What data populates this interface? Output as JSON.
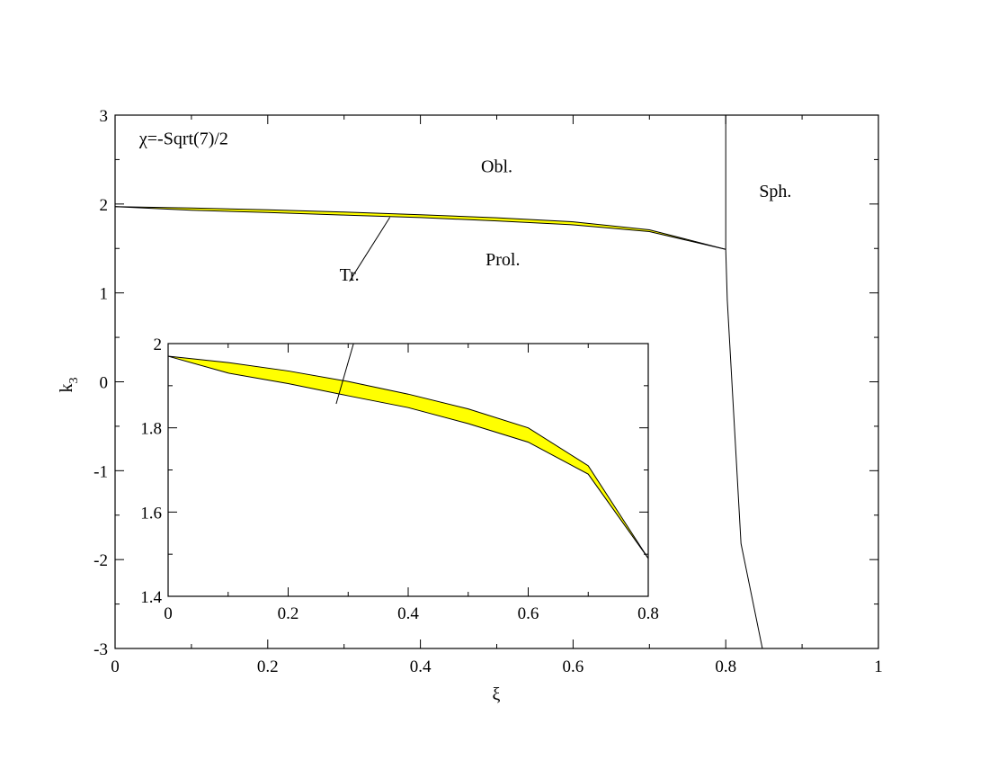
{
  "chart_data": [
    {
      "type": "area",
      "xlabel": "ξ",
      "ylabel": "k",
      "ylabel_sub": "3",
      "xlim": [
        0,
        1
      ],
      "ylim": [
        -3,
        3
      ],
      "xticks": [
        "0",
        "0.2",
        "0.4",
        "0.6",
        "0.8",
        "1"
      ],
      "yticks": [
        "-3",
        "-2",
        "-1",
        "0",
        "1",
        "2",
        "3"
      ],
      "annotations": [
        {
          "text": "χ=-Sqrt(7)/2",
          "x": 0.09,
          "y": 2.67
        },
        {
          "text": "Obl.",
          "x": 0.5,
          "y": 2.36
        },
        {
          "text": "Sph.",
          "x": 0.865,
          "y": 2.08
        },
        {
          "text": "Prol.",
          "x": 0.508,
          "y": 1.31
        },
        {
          "text": "Tr.",
          "x": 0.307,
          "y": 1.14
        }
      ],
      "band": {
        "x": [
          0,
          0.1,
          0.2,
          0.3,
          0.4,
          0.5,
          0.6,
          0.7,
          0.8
        ],
        "upper": [
          1.97,
          1.955,
          1.935,
          1.91,
          1.88,
          1.845,
          1.8,
          1.71,
          1.49
        ],
        "lower": [
          1.97,
          1.93,
          1.905,
          1.876,
          1.848,
          1.81,
          1.766,
          1.69,
          1.49
        ],
        "fill": "#ffff00"
      },
      "boundary": {
        "x": [
          0.8,
          0.8,
          0.802,
          0.82,
          0.848
        ],
        "y": [
          3,
          1.49,
          0.92,
          -1.82,
          -3
        ]
      },
      "pointer_line": {
        "x": [
          0.36,
          0.307
        ],
        "y": [
          1.85,
          1.13
        ]
      }
    },
    {
      "type": "area",
      "xlim": [
        0,
        0.8
      ],
      "ylim": [
        1.4,
        2
      ],
      "xticks": [
        "0",
        "0.2",
        "0.4",
        "0.6",
        "0.8"
      ],
      "yticks": [
        "1.4",
        "1.6",
        "1.8",
        "2"
      ],
      "band": {
        "x": [
          0,
          0.1,
          0.2,
          0.3,
          0.4,
          0.5,
          0.6,
          0.7,
          0.8
        ],
        "upper": [
          1.97,
          1.955,
          1.935,
          1.91,
          1.88,
          1.845,
          1.8,
          1.71,
          1.49
        ],
        "lower": [
          1.97,
          1.93,
          1.905,
          1.876,
          1.848,
          1.81,
          1.766,
          1.69,
          1.49
        ],
        "fill": "#ffff00"
      },
      "pointer_end": {
        "x": 0.28,
        "y": 1.857
      }
    }
  ]
}
